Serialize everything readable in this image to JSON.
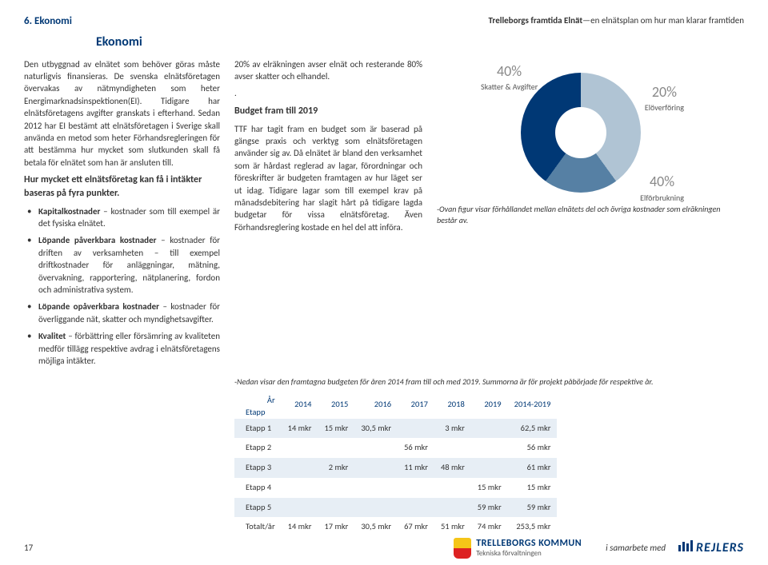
{
  "header": {
    "section": "6. Ekonomi",
    "doc_title_bold": "Trelleborgs framtida Elnät",
    "doc_title_rest": "—en elnätsplan om hur man klarar framtiden"
  },
  "heading": "Ekonomi",
  "col_left": {
    "p1": "Den utbyggnad av elnätet som behöver göras måste naturligvis finansieras. De svenska elnätsföretagen övervakas av nätmyndigheten som heter Energimarknadsinspektionen(EI). Tidigare har elnätsföretagens avgifter granskats i efterhand. Sedan 2012 har EI bestämt att elnätsföretagen i Sverige skall använda en metod som heter Förhandsregleringen för att bestämma hur mycket som slutkunden skall få betala för elnätet som han är ansluten till.",
    "sub1": "Hur mycket ett elnätsföretag kan få i intäkter baseras på fyra punkter.",
    "b1_bold": "Kapitalkostnader",
    "b1_rest": " – kostnader som till exempel är det fysiska elnätet.",
    "b2_bold": "Löpande påverkbara kostnader",
    "b2_rest": " – kostnader för driften av verksamheten – till exempel driftkostnader för anläggningar, mätning, övervakning, rapportering, nätplanering, fordon och administrativa system.",
    "b3_bold": "Löpande opåverkbara kostnader",
    "b3_rest": " – kostnader för överliggande nät, skatter och myndighetsavgifter.",
    "b4_bold": "Kvalitet",
    "b4_rest": " – förbättring eller försämring av kvaliteten medför tillägg respektive avdrag i elnätsföretagens möjliga intäkter."
  },
  "col_mid": {
    "p1": "20% av elräkningen avser elnät och resterande 80% avser skatter och elhandel.",
    "p2": ".",
    "sub1": "Budget fram till 2019",
    "p3": "TTF har tagit fram en budget som är baserad på gängse praxis och verktyg som elnätsföretagen använder sig av. Då elnätet är bland den verksamhet som är hårdast reglerad av lagar, förordningar och föreskrifter är budgeten framtagen av hur läget ser ut idag. Tidigare lagar som till exempel krav på månadsdebitering har slagit hårt på tidigare lagda budgetar för vissa elnätsföretag. Även Förhandsreglering kostade en hel del att införa."
  },
  "donut": {
    "slices": [
      {
        "label": "Skatter & Avgifter",
        "pct": "40%",
        "color": "#b0c4d4"
      },
      {
        "label": "Elöverföring",
        "pct": "20%",
        "color": "#5680a4"
      },
      {
        "label": "Elförbrukning",
        "pct": "40%",
        "color": "#003875"
      }
    ],
    "caption": "-Ovan figur visar förhållandet mellan elnätets del och övriga kostnader som elräkningen består av."
  },
  "table_note": "-Nedan  visar den framtagna budgeten för åren 2014 fram till och med 2019. Summorna är för projekt påbörjade för respektive år.",
  "table": {
    "head_label": "Etapp",
    "head_sub": "År",
    "years": [
      "2014",
      "2015",
      "2016",
      "2017",
      "2018",
      "2019",
      "2014-2019"
    ],
    "rows": [
      {
        "label": "Etapp 1",
        "cells": [
          "14 mkr",
          "15 mkr",
          "30,5 mkr",
          "",
          "3 mkr",
          "",
          "62,5 mkr"
        ]
      },
      {
        "label": "Etapp 2",
        "cells": [
          "",
          "",
          "",
          "56 mkr",
          "",
          "",
          "56 mkr"
        ]
      },
      {
        "label": "Etapp 3",
        "cells": [
          "",
          "2 mkr",
          "",
          "11 mkr",
          "48 mkr",
          "",
          "61 mkr"
        ]
      },
      {
        "label": "Etapp 4",
        "cells": [
          "",
          "",
          "",
          "",
          "",
          "15 mkr",
          "15 mkr"
        ]
      },
      {
        "label": "Etapp 5",
        "cells": [
          "",
          "",
          "",
          "",
          "",
          "59 mkr",
          "59 mkr"
        ]
      },
      {
        "label": "Totalt/år",
        "cells": [
          "14 mkr",
          "17 mkr",
          "30,5 mkr",
          "67 mkr",
          "51 mkr",
          "74 mkr",
          "253,5 mkr"
        ]
      }
    ],
    "shade_color": "#e7eef5"
  },
  "footer": {
    "page": "17",
    "kommun_top": "TRELLEBORGS KOMMUN",
    "kommun_sub": "Tekniska förvaltningen",
    "samarb": "i samarbete med",
    "rejlers": "REJLERS"
  }
}
